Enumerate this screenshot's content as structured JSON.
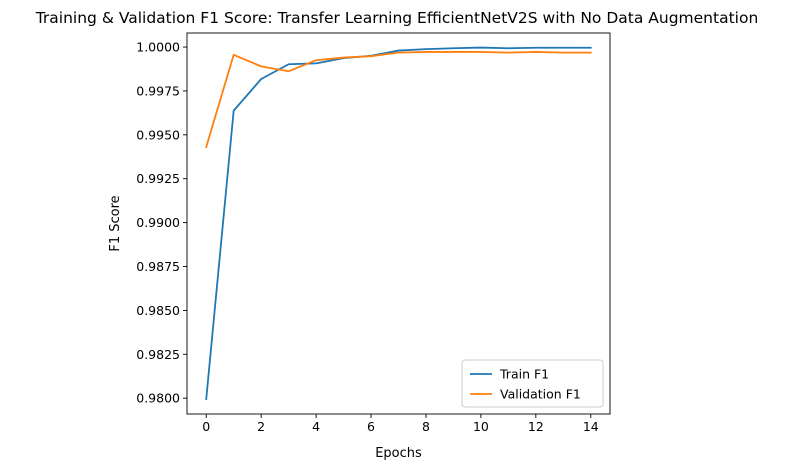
{
  "chart_data": {
    "type": "line",
    "title": "Training & Validation F1 Score: Transfer Learning EfficientNetV2S with No Data Augmentation",
    "xlabel": "Epochs",
    "ylabel": "F1 Score",
    "x": [
      0,
      1,
      2,
      3,
      4,
      5,
      6,
      7,
      8,
      9,
      10,
      11,
      12,
      13,
      14
    ],
    "xlim": [
      -0.7,
      14.7
    ],
    "ylim": [
      0.9791,
      1.0008
    ],
    "xticks": [
      0,
      2,
      4,
      6,
      8,
      10,
      12,
      14
    ],
    "yticks": [
      0.98,
      0.9825,
      0.985,
      0.9875,
      0.99,
      0.9925,
      0.995,
      0.9975,
      1.0
    ],
    "xtick_labels": [
      "0",
      "2",
      "4",
      "6",
      "8",
      "10",
      "12",
      "14"
    ],
    "ytick_labels": [
      "0.9800",
      "0.9825",
      "0.9850",
      "0.9875",
      "0.9900",
      "0.9925",
      "0.9950",
      "0.9975",
      "1.0000"
    ],
    "grid": false,
    "legend_position": "lower-right",
    "series": [
      {
        "name": "Train F1",
        "color": "#1f77b4",
        "values": [
          0.97995,
          0.99638,
          0.99818,
          0.99902,
          0.99907,
          0.99937,
          0.9995,
          0.9998,
          0.99988,
          0.99993,
          0.99997,
          0.99993,
          0.99996,
          0.99996,
          0.99996
        ]
      },
      {
        "name": "Validation F1",
        "color": "#ff7f0e",
        "values": [
          0.99431,
          0.99956,
          0.9989,
          0.99862,
          0.99925,
          0.9994,
          0.99948,
          0.99968,
          0.99972,
          0.99972,
          0.99972,
          0.99968,
          0.99972,
          0.99968,
          0.99968
        ]
      }
    ]
  }
}
